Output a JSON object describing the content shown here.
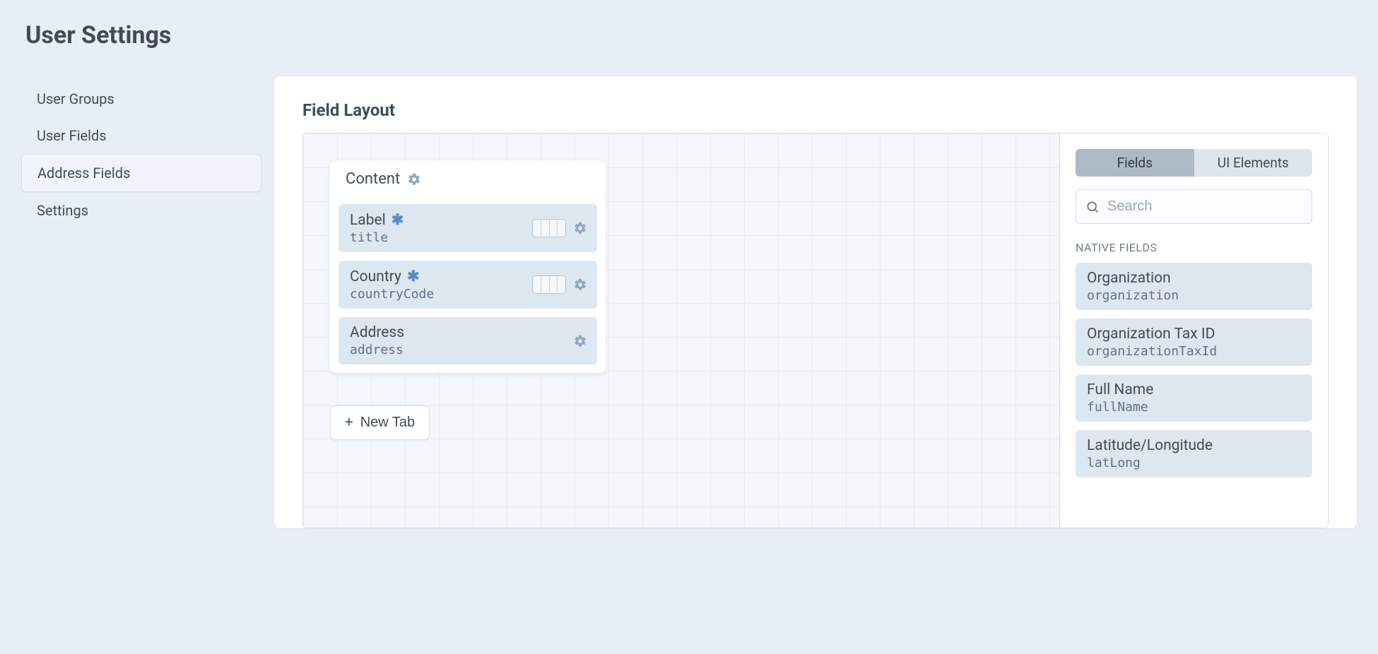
{
  "page": {
    "title": "User Settings"
  },
  "sidebar": {
    "items": [
      {
        "label": "User Groups",
        "active": false
      },
      {
        "label": "User Fields",
        "active": false
      },
      {
        "label": "Address Fields",
        "active": true
      },
      {
        "label": "Settings",
        "active": false
      }
    ]
  },
  "panel": {
    "title": "Field Layout"
  },
  "tab": {
    "label": "Content",
    "fields": [
      {
        "label": "Label",
        "handle": "title",
        "required": true,
        "hasWidth": true
      },
      {
        "label": "Country",
        "handle": "countryCode",
        "required": true,
        "hasWidth": true
      },
      {
        "label": "Address",
        "handle": "address",
        "required": false,
        "hasWidth": false
      }
    ]
  },
  "newTab": {
    "label": "New Tab"
  },
  "fldSidebar": {
    "tabs": [
      {
        "label": "Fields",
        "active": true
      },
      {
        "label": "UI Elements",
        "active": false
      }
    ],
    "search": {
      "placeholder": "Search"
    },
    "groupLabel": "NATIVE FIELDS",
    "available": [
      {
        "label": "Organization",
        "handle": "organization"
      },
      {
        "label": "Organization Tax ID",
        "handle": "organizationTaxId"
      },
      {
        "label": "Full Name",
        "handle": "fullName"
      },
      {
        "label": "Latitude/Longitude",
        "handle": "latLong"
      }
    ]
  },
  "colors": {
    "page_bg": "#e8eef5",
    "panel_bg": "#ffffff",
    "canvas_bg": "#f4f7fb",
    "grid_line": "#e7ecf3",
    "field_bg": "#dde7f0",
    "text": "#3f4d5a",
    "muted": "#6f7e8d",
    "icon": "#8ea9c4",
    "border": "#d7dee8"
  }
}
